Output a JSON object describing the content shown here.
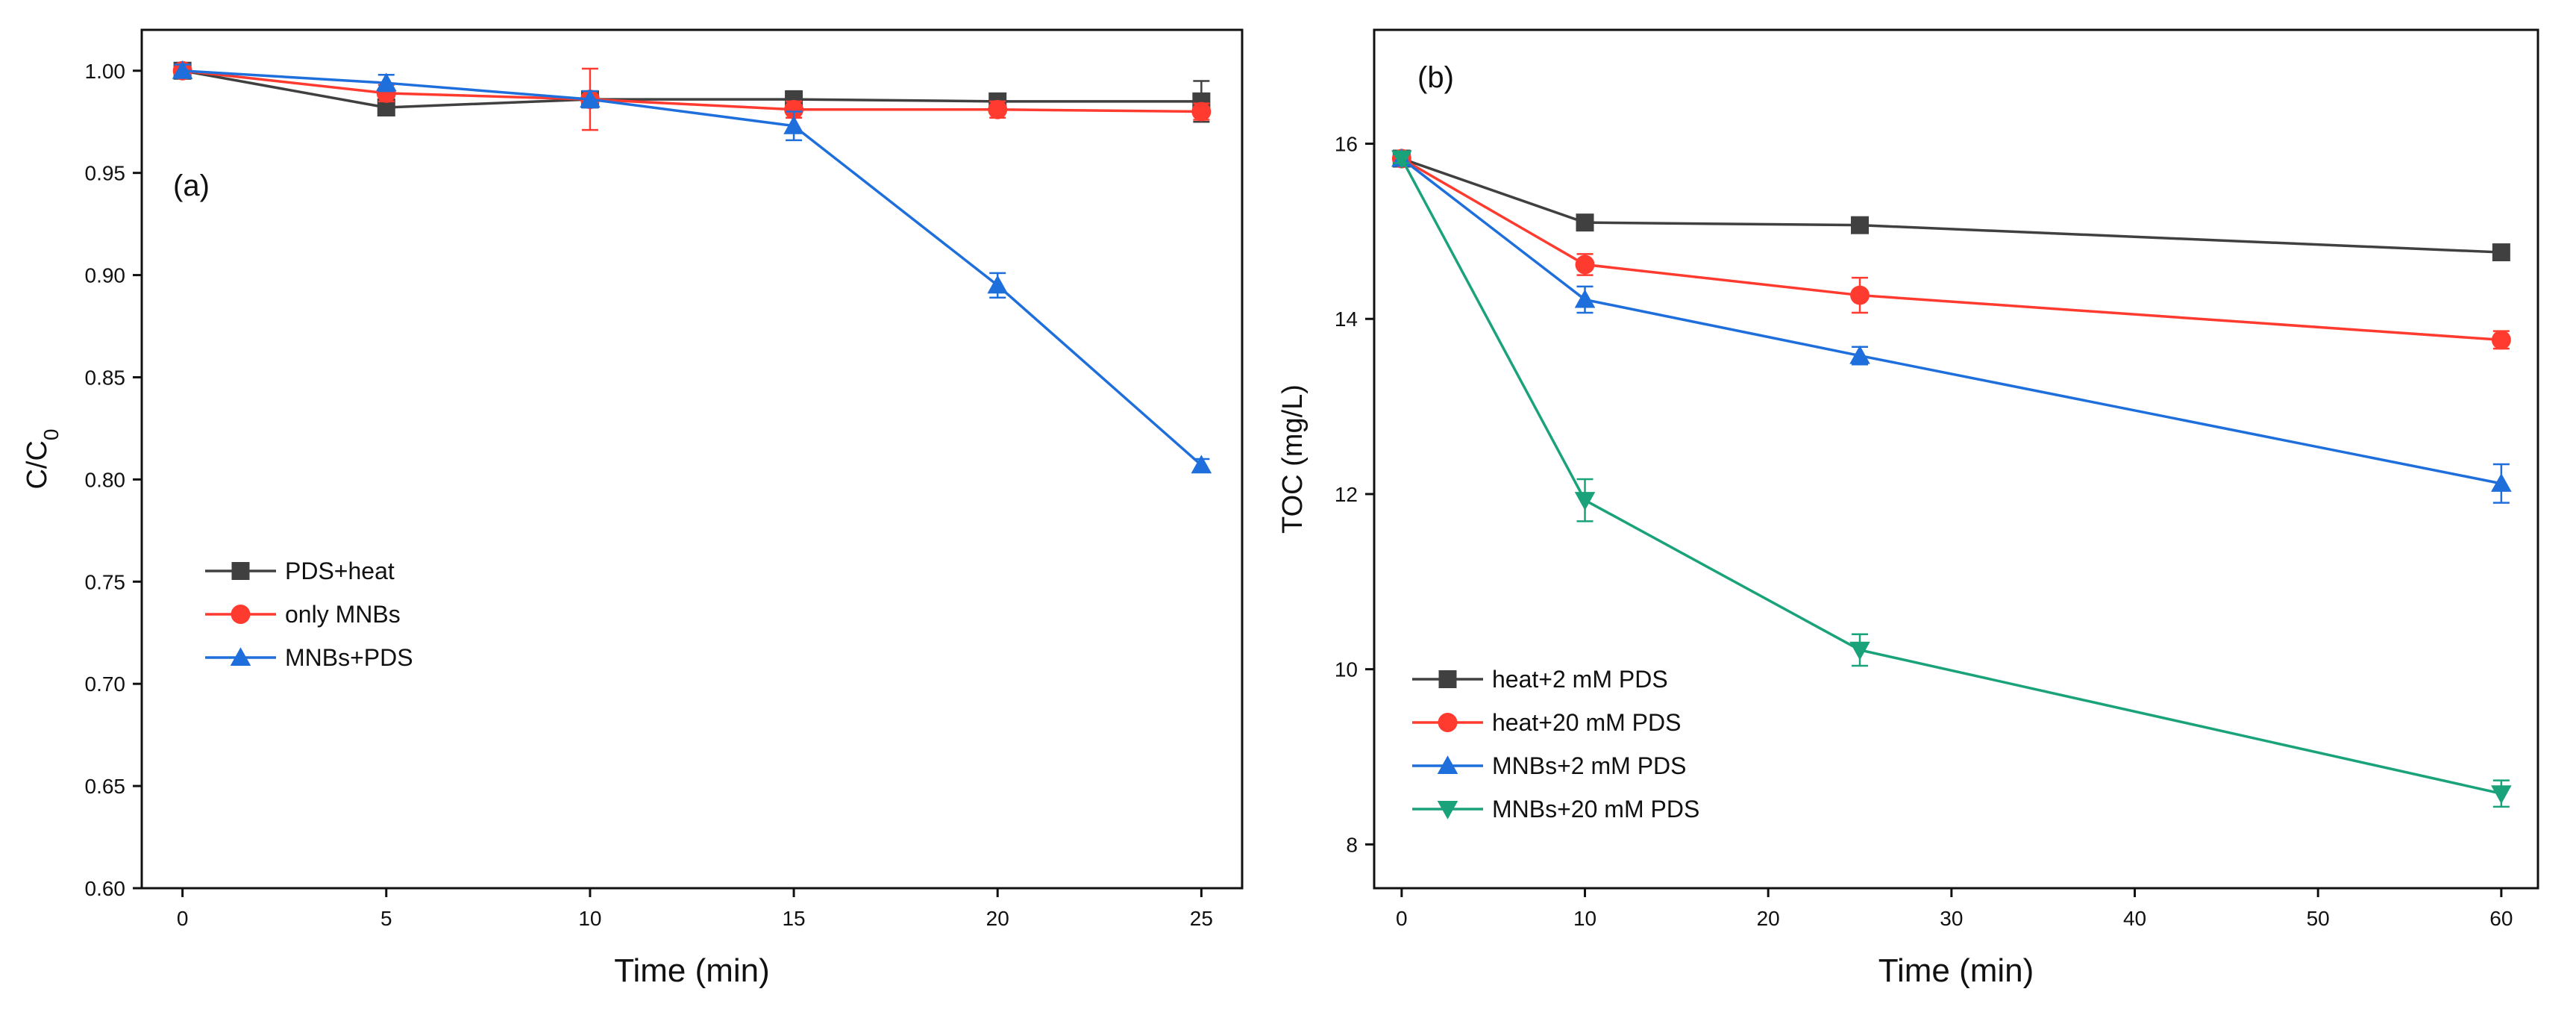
{
  "chart_data": [
    {
      "type": "line",
      "panel_label": "(a)",
      "xlabel": "Time (min)",
      "ylabel": "C/C",
      "ylabel_sub": "0",
      "xlim": [
        -1,
        26
      ],
      "ylim": [
        0.6,
        1.02
      ],
      "xticks": [
        0,
        5,
        10,
        15,
        20,
        25
      ],
      "yticks": [
        0.6,
        0.65,
        0.7,
        0.75,
        0.8,
        0.85,
        0.9,
        0.95,
        1.0
      ],
      "ytick_decimals": 2,
      "legend_position": "middle-left",
      "series": [
        {
          "name": "PDS+heat",
          "color": "#404040",
          "marker": "square",
          "x": [
            0,
            5,
            10,
            15,
            20,
            25
          ],
          "y": [
            1.0,
            0.982,
            0.986,
            0.986,
            0.985,
            0.985
          ],
          "err": [
            0.003,
            0.003,
            0.004,
            0.004,
            0.003,
            0.01
          ]
        },
        {
          "name": "only MNBs",
          "color": "#ff3b30",
          "marker": "circle",
          "x": [
            0,
            5,
            10,
            15,
            20,
            25
          ],
          "y": [
            1.0,
            0.989,
            0.986,
            0.981,
            0.981,
            0.98
          ],
          "err": [
            0.003,
            0.004,
            0.015,
            0.004,
            0.004,
            0.004
          ]
        },
        {
          "name": "MNBs+PDS",
          "color": "#1e6fdc",
          "marker": "triangle-up",
          "x": [
            0,
            5,
            10,
            15,
            20,
            25
          ],
          "y": [
            1.0,
            0.994,
            0.986,
            0.973,
            0.895,
            0.807
          ],
          "err": [
            0.003,
            0.004,
            0.004,
            0.007,
            0.006,
            0.003
          ]
        }
      ]
    },
    {
      "type": "line",
      "panel_label": "(b)",
      "xlabel": "Time (min)",
      "ylabel": "TOC (mg/L)",
      "xlim": [
        -1.5,
        62
      ],
      "ylim": [
        7.5,
        17.3
      ],
      "xticks": [
        0,
        10,
        20,
        30,
        40,
        50,
        60
      ],
      "yticks": [
        8,
        10,
        12,
        14,
        16
      ],
      "ytick_decimals": 0,
      "legend_position": "bottom-left",
      "series": [
        {
          "name": "heat+2   mM PDS",
          "color": "#404040",
          "marker": "square",
          "x": [
            0,
            10,
            25,
            60
          ],
          "y": [
            15.83,
            15.1,
            15.07,
            14.76
          ],
          "err": [
            0.05,
            0.06,
            0.06,
            0.06
          ]
        },
        {
          "name": "heat+20  mM PDS",
          "color": "#ff3b30",
          "marker": "circle",
          "x": [
            0,
            10,
            25,
            60
          ],
          "y": [
            15.83,
            14.62,
            14.27,
            13.76
          ],
          "err": [
            0.05,
            0.12,
            0.2,
            0.1
          ]
        },
        {
          "name": "MNBs+2   mM PDS",
          "color": "#1e6fdc",
          "marker": "triangle-up",
          "x": [
            0,
            10,
            25,
            60
          ],
          "y": [
            15.83,
            14.22,
            13.58,
            12.12
          ],
          "err": [
            0.05,
            0.15,
            0.1,
            0.22
          ]
        },
        {
          "name": "MNBs+20  mM PDS",
          "color": "#1aa37a",
          "marker": "triangle-down",
          "x": [
            0,
            10,
            25,
            60
          ],
          "y": [
            15.83,
            11.93,
            10.22,
            8.58
          ],
          "err": [
            0.05,
            0.24,
            0.18,
            0.15
          ]
        }
      ]
    }
  ]
}
